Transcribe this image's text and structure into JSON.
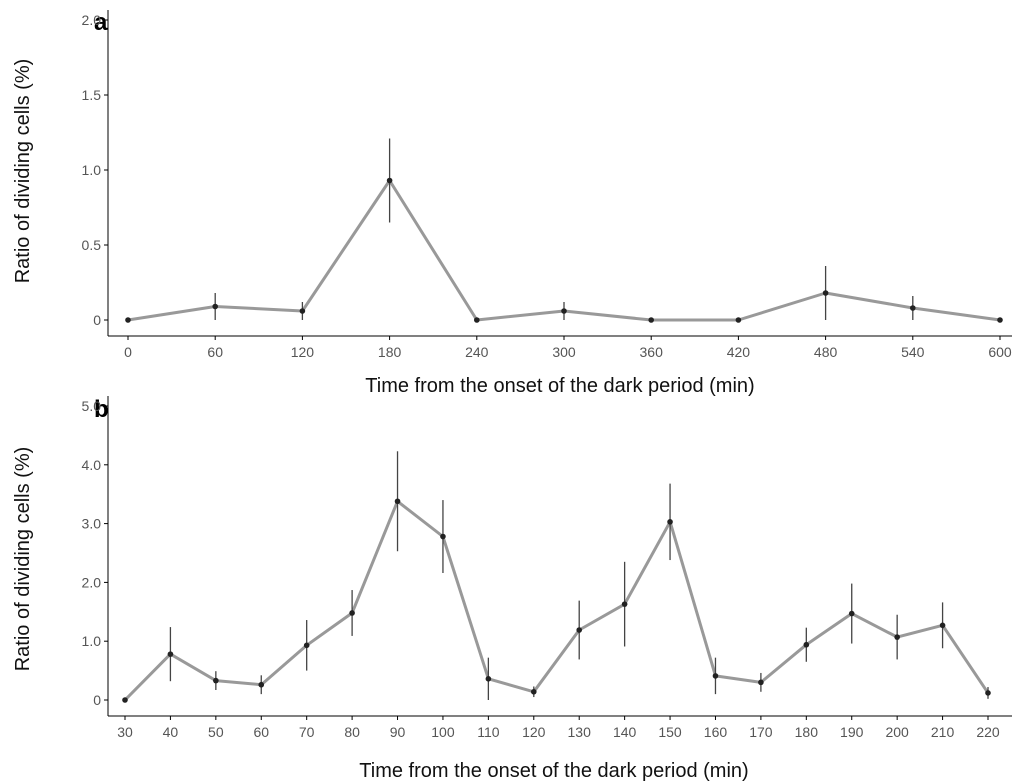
{
  "chart_data": [
    {
      "type": "line",
      "panel_label": "a",
      "xlabel": "Time from the onset of the dark period (min)",
      "ylabel": "Ratio of dividing cells (%)",
      "xlim": [
        -20,
        620
      ],
      "ylim": [
        0,
        2.0
      ],
      "x_ticks": [
        0,
        60,
        120,
        180,
        240,
        300,
        360,
        420,
        480,
        540,
        600
      ],
      "y_ticks": [
        0,
        0.5,
        1.0,
        1.5,
        2.0
      ],
      "y_tick_labels": [
        "0",
        "0.5",
        "1.0",
        "1.5",
        "2.0"
      ],
      "grid": false,
      "series": [
        {
          "x": [
            0,
            60,
            120,
            180,
            240,
            300,
            360,
            420,
            480,
            540,
            600
          ],
          "values": [
            0.0,
            0.09,
            0.06,
            0.93,
            0.0,
            0.06,
            0.0,
            0.0,
            0.18,
            0.08,
            0.0
          ],
          "error": [
            0,
            0.09,
            0.06,
            0.28,
            0,
            0.06,
            0,
            0,
            0.18,
            0.08,
            0
          ]
        }
      ]
    },
    {
      "type": "line",
      "panel_label": "b",
      "xlabel": "Time from the onset of the dark period (min)",
      "ylabel": "Ratio of dividing cells (%)",
      "xlim": [
        26,
        224
      ],
      "ylim": [
        0,
        5.0
      ],
      "x_ticks": [
        30,
        40,
        50,
        60,
        70,
        80,
        90,
        100,
        110,
        120,
        130,
        140,
        150,
        160,
        170,
        180,
        190,
        200,
        210,
        220
      ],
      "y_ticks": [
        0,
        1.0,
        2.0,
        3.0,
        4.0,
        5.0
      ],
      "y_tick_labels": [
        "0",
        "1.0",
        "2.0",
        "3.0",
        "4.0",
        "5.0"
      ],
      "grid": false,
      "series": [
        {
          "x": [
            30,
            40,
            50,
            60,
            70,
            80,
            90,
            100,
            110,
            120,
            130,
            140,
            150,
            160,
            170,
            180,
            190,
            200,
            210,
            220
          ],
          "values": [
            0.0,
            0.78,
            0.33,
            0.26,
            0.93,
            1.48,
            3.38,
            2.78,
            0.36,
            0.14,
            1.19,
            1.63,
            3.03,
            0.41,
            0.3,
            0.94,
            1.47,
            1.07,
            1.27,
            0.12
          ],
          "error": [
            0,
            0.46,
            0.16,
            0.16,
            0.43,
            0.39,
            0.85,
            0.62,
            0.36,
            0.09,
            0.5,
            0.72,
            0.65,
            0.31,
            0.16,
            0.29,
            0.51,
            0.38,
            0.39,
            0.1
          ]
        }
      ]
    }
  ]
}
